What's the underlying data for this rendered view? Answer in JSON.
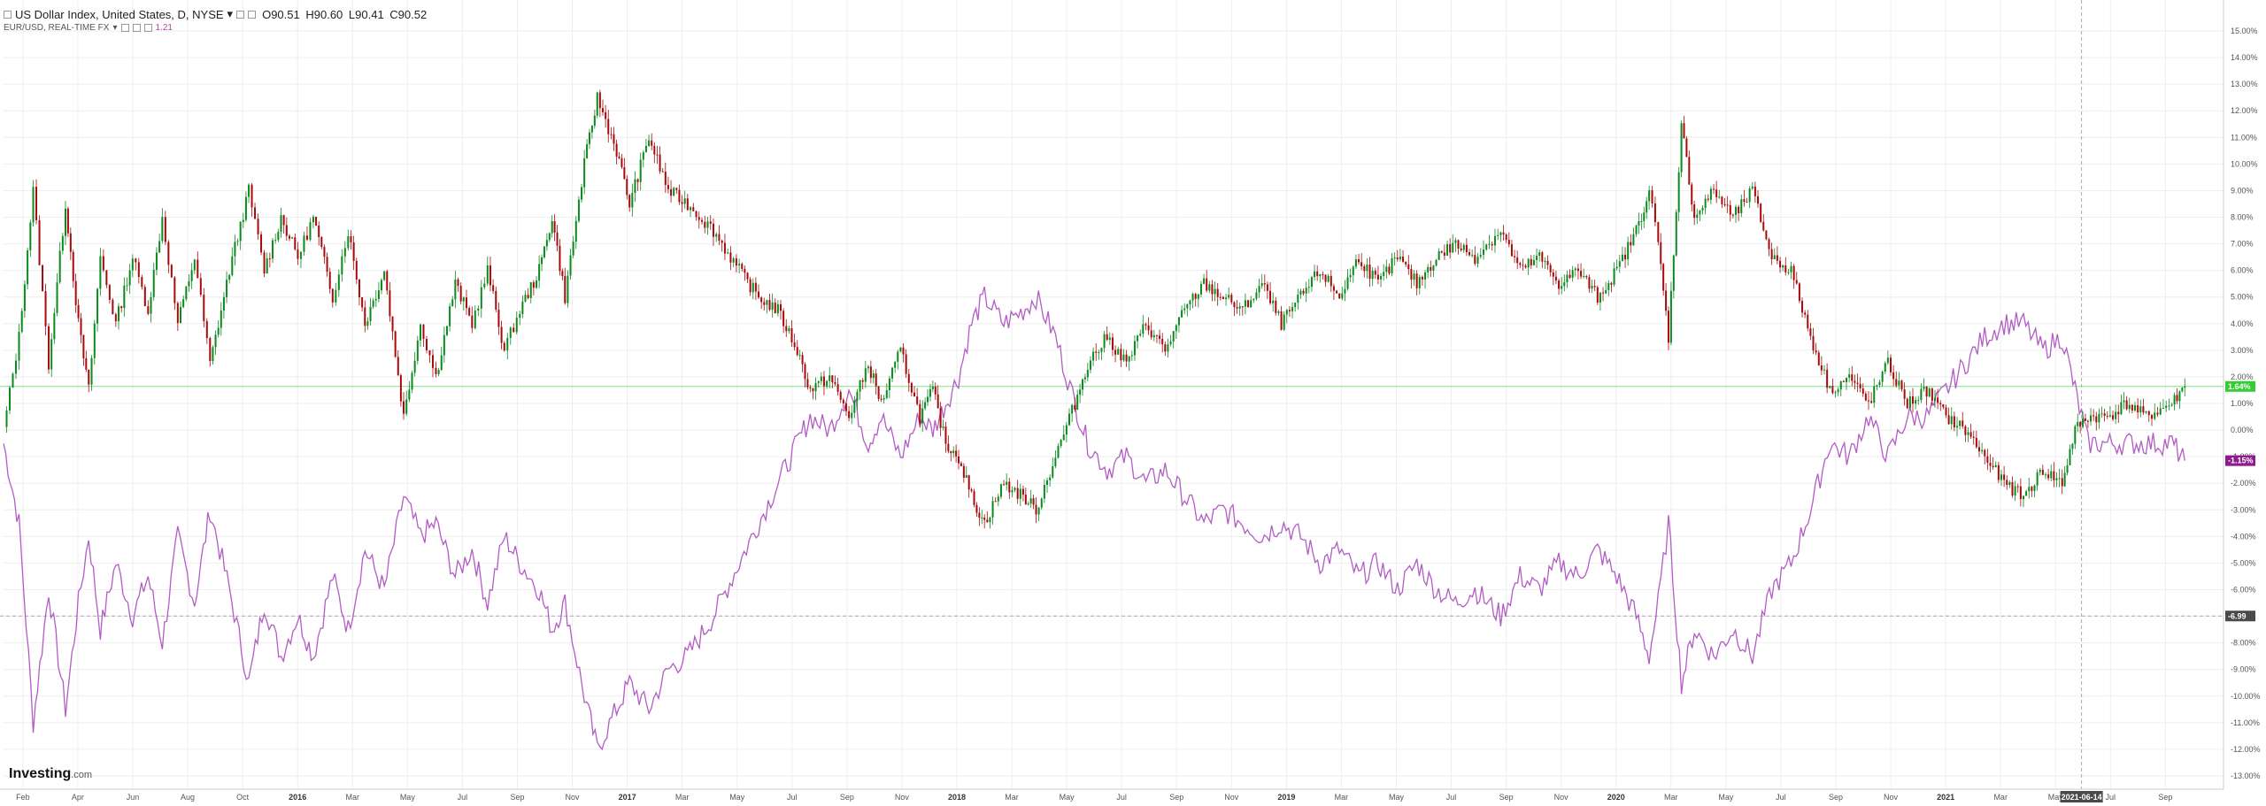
{
  "legend": {
    "main_title": "US Dollar Index, United States, D, NYSE",
    "main_caret": "▾",
    "ohlc": {
      "o": "O90.51",
      "h": "H90.60",
      "l": "L90.41",
      "c": "C90.52"
    },
    "secondary_title": "EUR/USD, REAL-TIME FX",
    "secondary_caret": "▾",
    "secondary_value": "1.21"
  },
  "brand": {
    "name": "Investing",
    "suffix": ".com"
  },
  "colors": {
    "up_candle": "#0b8a1e",
    "down_candle": "#a8090b",
    "eurusd_line": "#b25cc4",
    "last_price_label": "#33cc33",
    "eurusd_label": "#8e1a8e",
    "ref_line": "#88dd88",
    "crosshair_label": "#4a4a4a",
    "grid": "#eeeeee"
  },
  "chart_data": {
    "type": "line",
    "x_ticks": [
      "Feb",
      "Apr",
      "Jun",
      "Aug",
      "Oct",
      "2016",
      "Mar",
      "May",
      "Jul",
      "Sep",
      "Nov",
      "2017",
      "Mar",
      "May",
      "Jul",
      "Sep",
      "Nov",
      "2018",
      "Mar",
      "May",
      "Jul",
      "Sep",
      "Nov",
      "2019",
      "Mar",
      "May",
      "Jul",
      "Sep",
      "Nov",
      "2020",
      "Mar",
      "May",
      "Jul",
      "Sep",
      "Nov",
      "2021",
      "Mar",
      "May",
      "Jul",
      "Sep"
    ],
    "x_bold_ticks": [
      "2016",
      "2017",
      "2018",
      "2019",
      "2020",
      "2021"
    ],
    "crosshair_date_label": "2021-06-14",
    "y_ticks": [
      "15.00%",
      "14.00%",
      "13.00%",
      "12.00%",
      "11.00%",
      "10.00%",
      "9.00%",
      "8.00%",
      "7.00%",
      "6.00%",
      "5.00%",
      "4.00%",
      "3.00%",
      "2.00%",
      "1.00%",
      "0.00%",
      "-1.00%",
      "-2.00%",
      "-3.00%",
      "-4.00%",
      "-5.00%",
      "-6.00%",
      "-7.00%",
      "-8.00%",
      "-9.00%",
      "-10.00%",
      "-11.00%",
      "-12.00%",
      "-13.00%"
    ],
    "ylim": [
      -13.5,
      15.5
    ],
    "last_value_label": "1.64%",
    "eurusd_value_label": "-1.15%",
    "crosshair_value_label": "-6.99",
    "series": [
      {
        "name": "US Dollar Index",
        "style": "candles",
        "points": [
          [
            0,
            0
          ],
          [
            1.2,
            3.5
          ],
          [
            2.3,
            9.0
          ],
          [
            3.5,
            2.5
          ],
          [
            4.8,
            8.5
          ],
          [
            5.8,
            4.0
          ],
          [
            6.6,
            1.5
          ],
          [
            7.5,
            6.5
          ],
          [
            8.7,
            4.0
          ],
          [
            10,
            6.5
          ],
          [
            11.2,
            4.5
          ],
          [
            12.3,
            8.0
          ],
          [
            13.5,
            4.0
          ],
          [
            14.8,
            6.5
          ],
          [
            16,
            2.5
          ],
          [
            17.5,
            6.0
          ],
          [
            19,
            9.0
          ],
          [
            20.2,
            6.0
          ],
          [
            21.5,
            8.0
          ],
          [
            22.8,
            6.5
          ],
          [
            24,
            8.0
          ],
          [
            25.5,
            5.0
          ],
          [
            26.7,
            7.5
          ],
          [
            28,
            4.0
          ],
          [
            29.5,
            6.0
          ],
          [
            31,
            0.5
          ],
          [
            32.3,
            4.0
          ],
          [
            33.5,
            2.0
          ],
          [
            35,
            5.5
          ],
          [
            36.3,
            4.0
          ],
          [
            37.5,
            6.0
          ],
          [
            38.8,
            3.0
          ],
          [
            40,
            4.5
          ],
          [
            41.5,
            6.0
          ],
          [
            42.5,
            8.0
          ],
          [
            43.5,
            5.0
          ],
          [
            45,
            10.0
          ],
          [
            46,
            12.5
          ],
          [
            47.5,
            10.5
          ],
          [
            48.5,
            8.5
          ],
          [
            50,
            11.0
          ],
          [
            51.5,
            9.0
          ],
          [
            53,
            8.5
          ],
          [
            55,
            7.5
          ],
          [
            57,
            6.0
          ],
          [
            58.5,
            5.0
          ],
          [
            60,
            4.5
          ],
          [
            61.5,
            3.0
          ],
          [
            62.5,
            1.5
          ],
          [
            64,
            2.0
          ],
          [
            65.5,
            0.5
          ],
          [
            67,
            2.5
          ],
          [
            68,
            1.0
          ],
          [
            69.5,
            3.0
          ],
          [
            71,
            0.5
          ],
          [
            72,
            1.5
          ],
          [
            73,
            -0.5
          ],
          [
            74,
            -1.0
          ],
          [
            75,
            -2.5
          ],
          [
            76,
            -3.5
          ],
          [
            77.5,
            -2.0
          ],
          [
            79,
            -2.5
          ],
          [
            80,
            -3.0
          ],
          [
            81.5,
            -1.0
          ],
          [
            83,
            1.0
          ],
          [
            84,
            2.5
          ],
          [
            85.5,
            3.5
          ],
          [
            87,
            2.5
          ],
          [
            88.5,
            4.0
          ],
          [
            90,
            3.0
          ],
          [
            91.5,
            4.5
          ],
          [
            93,
            5.5
          ],
          [
            94.5,
            5.0
          ],
          [
            96,
            4.5
          ],
          [
            97.5,
            5.5
          ],
          [
            99,
            4.0
          ],
          [
            100.5,
            5.0
          ],
          [
            102,
            6.0
          ],
          [
            103.5,
            5.0
          ],
          [
            105,
            6.5
          ],
          [
            106.5,
            5.5
          ],
          [
            108,
            6.5
          ],
          [
            109.5,
            5.5
          ],
          [
            111,
            6.5
          ],
          [
            112.5,
            7.0
          ],
          [
            114,
            6.5
          ],
          [
            116,
            7.5
          ],
          [
            117.5,
            6.0
          ],
          [
            119,
            6.5
          ],
          [
            120.5,
            5.5
          ],
          [
            122,
            6.0
          ],
          [
            123.5,
            5.0
          ],
          [
            125,
            6.0
          ],
          [
            126.5,
            7.5
          ],
          [
            127.5,
            9.0
          ],
          [
            128.2,
            7.0
          ],
          [
            129,
            3.5
          ],
          [
            130,
            11.5
          ],
          [
            131,
            8.0
          ],
          [
            132.5,
            9.0
          ],
          [
            134,
            8.0
          ],
          [
            135.5,
            9.0
          ],
          [
            137,
            6.5
          ],
          [
            138.5,
            6.0
          ],
          [
            140,
            3.5
          ],
          [
            141.5,
            1.5
          ],
          [
            143,
            2.0
          ],
          [
            144.5,
            1.0
          ],
          [
            146,
            2.5
          ],
          [
            147.5,
            1.0
          ],
          [
            149,
            1.5
          ],
          [
            150.5,
            0.5
          ],
          [
            152,
            0.0
          ],
          [
            153.5,
            -1.0
          ],
          [
            155,
            -2.0
          ],
          [
            156.5,
            -2.5
          ],
          [
            158,
            -1.5
          ],
          [
            159.5,
            -2.0
          ],
          [
            160.5,
            0.0
          ],
          [
            161.5,
            0.5
          ],
          [
            163,
            0.5
          ],
          [
            164.5,
            1.0
          ],
          [
            166,
            0.5
          ],
          [
            168,
            1.0
          ],
          [
            169,
            1.64
          ]
        ]
      },
      {
        "name": "EUR/USD",
        "style": "line",
        "points": [
          [
            0,
            -0.5
          ],
          [
            1.2,
            -3.5
          ],
          [
            2.3,
            -11.0
          ],
          [
            3.5,
            -6.0
          ],
          [
            4.8,
            -10.5
          ],
          [
            5.8,
            -6.5
          ],
          [
            6.6,
            -4.0
          ],
          [
            7.5,
            -7.5
          ],
          [
            8.7,
            -5.0
          ],
          [
            10,
            -7.0
          ],
          [
            11.2,
            -5.5
          ],
          [
            12.3,
            -8.0
          ],
          [
            13.5,
            -4.0
          ],
          [
            14.8,
            -6.5
          ],
          [
            16,
            -3.0
          ],
          [
            17.5,
            -6.0
          ],
          [
            19,
            -9.5
          ],
          [
            20.2,
            -6.5
          ],
          [
            21.5,
            -8.5
          ],
          [
            22.8,
            -7.0
          ],
          [
            24,
            -8.5
          ],
          [
            25.5,
            -5.5
          ],
          [
            26.7,
            -7.5
          ],
          [
            28,
            -4.5
          ],
          [
            29.5,
            -6.0
          ],
          [
            31,
            -2.5
          ],
          [
            32.3,
            -4.0
          ],
          [
            33.5,
            -3.5
          ],
          [
            35,
            -5.5
          ],
          [
            36.3,
            -4.5
          ],
          [
            37.5,
            -6.5
          ],
          [
            38.8,
            -4.0
          ],
          [
            40,
            -5.0
          ],
          [
            41.5,
            -6.0
          ],
          [
            42.5,
            -7.5
          ],
          [
            43.5,
            -6.5
          ],
          [
            45,
            -10.0
          ],
          [
            46,
            -12.0
          ],
          [
            47.5,
            -10.5
          ],
          [
            48.5,
            -9.5
          ],
          [
            50,
            -10.5
          ],
          [
            51.5,
            -9.0
          ],
          [
            53,
            -8.5
          ],
          [
            55,
            -7.0
          ],
          [
            57,
            -5.0
          ],
          [
            58.5,
            -3.5
          ],
          [
            60,
            -2.0
          ],
          [
            61.5,
            -0.5
          ],
          [
            62.5,
            0.5
          ],
          [
            64,
            0.0
          ],
          [
            65.5,
            1.5
          ],
          [
            67,
            -0.5
          ],
          [
            68,
            0.5
          ],
          [
            69.5,
            -1.0
          ],
          [
            71,
            0.5
          ],
          [
            72,
            0.0
          ],
          [
            73,
            1.0
          ],
          [
            74,
            2.0
          ],
          [
            75,
            4.0
          ],
          [
            76,
            5.0
          ],
          [
            77.5,
            4.0
          ],
          [
            79,
            4.5
          ],
          [
            80,
            5.0
          ],
          [
            81.5,
            3.5
          ],
          [
            83,
            1.0
          ],
          [
            84,
            -0.5
          ],
          [
            85.5,
            -1.5
          ],
          [
            87,
            -1.0
          ],
          [
            88.5,
            -2.0
          ],
          [
            90,
            -1.5
          ],
          [
            91.5,
            -2.5
          ],
          [
            93,
            -3.5
          ],
          [
            94.5,
            -3.0
          ],
          [
            96,
            -3.5
          ],
          [
            97.5,
            -4.0
          ],
          [
            99,
            -3.5
          ],
          [
            100.5,
            -4.0
          ],
          [
            102,
            -5.0
          ],
          [
            103.5,
            -4.5
          ],
          [
            105,
            -5.5
          ],
          [
            106.5,
            -5.0
          ],
          [
            108,
            -6.0
          ],
          [
            109.5,
            -5.0
          ],
          [
            111,
            -6.0
          ],
          [
            112.5,
            -6.5
          ],
          [
            114,
            -6.0
          ],
          [
            116,
            -7.0
          ],
          [
            117.5,
            -5.5
          ],
          [
            119,
            -6.0
          ],
          [
            120.5,
            -5.0
          ],
          [
            122,
            -5.5
          ],
          [
            123.5,
            -4.5
          ],
          [
            125,
            -5.5
          ],
          [
            126.5,
            -7.0
          ],
          [
            127.5,
            -8.5
          ],
          [
            128.2,
            -6.5
          ],
          [
            129,
            -3.5
          ],
          [
            130,
            -9.5
          ],
          [
            131,
            -7.5
          ],
          [
            132.5,
            -8.5
          ],
          [
            134,
            -7.5
          ],
          [
            135.5,
            -8.5
          ],
          [
            137,
            -6.0
          ],
          [
            138.5,
            -5.0
          ],
          [
            140,
            -3.0
          ],
          [
            141.5,
            -0.5
          ],
          [
            143,
            -1.0
          ],
          [
            144.5,
            0.5
          ],
          [
            146,
            -1.0
          ],
          [
            147.5,
            0.5
          ],
          [
            149,
            0.5
          ],
          [
            150.5,
            1.5
          ],
          [
            152,
            2.5
          ],
          [
            153.5,
            3.5
          ],
          [
            155,
            4.0
          ],
          [
            156.5,
            4.0
          ],
          [
            158,
            3.0
          ],
          [
            159.5,
            3.5
          ],
          [
            160.5,
            1.5
          ],
          [
            161.5,
            -0.5
          ],
          [
            163,
            -0.5
          ],
          [
            164.5,
            -0.5
          ],
          [
            166,
            -0.5
          ],
          [
            168,
            -0.5
          ],
          [
            169,
            -1.15
          ]
        ]
      }
    ]
  }
}
